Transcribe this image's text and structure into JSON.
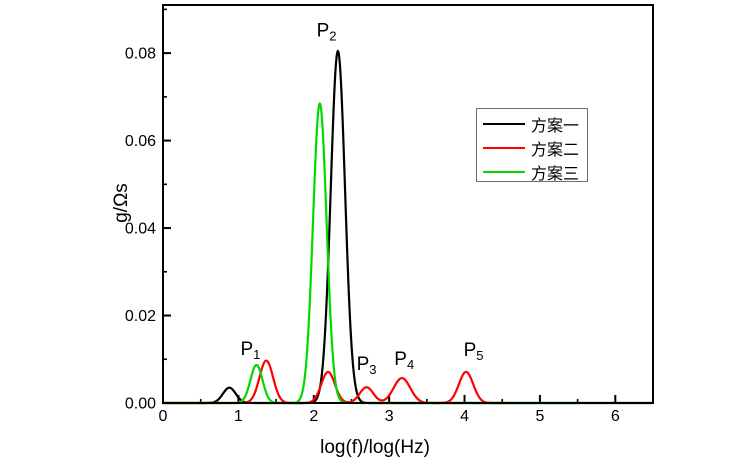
{
  "chart_data": {
    "type": "line",
    "title": "",
    "xlabel": "log(f)/log(Hz)",
    "ylabel": "g/Ωs",
    "xlim": [
      0,
      6.5
    ],
    "ylim": [
      0,
      0.091
    ],
    "x_major_ticks": [
      0,
      1,
      2,
      3,
      4,
      5,
      6
    ],
    "x_minor_ticks": [
      0.5,
      1.5,
      2.5,
      3.5,
      4.5,
      5.5
    ],
    "y_major_ticks": [
      0.0,
      0.02,
      0.04,
      0.06,
      0.08
    ],
    "y_minor_ticks": [
      0.01,
      0.03,
      0.05,
      0.07,
      0.09
    ],
    "grid": false,
    "legend_position": "upper-right-inside",
    "axis_color": "#000000",
    "series": [
      {
        "name": "方案一",
        "color": "#000000",
        "x_range": [
          0,
          6.5
        ],
        "gaussian_peaks": [
          {
            "center": 0.88,
            "height": 0.0035,
            "sigma": 0.085
          },
          {
            "center": 2.32,
            "height": 0.0805,
            "sigma": 0.095
          }
        ]
      },
      {
        "name": "方案二",
        "color": "#fe0000",
        "x_range": [
          0,
          4.55
        ],
        "gaussian_peaks": [
          {
            "center": 1.37,
            "height": 0.0097,
            "sigma": 0.09
          },
          {
            "center": 2.19,
            "height": 0.0071,
            "sigma": 0.09
          },
          {
            "center": 2.7,
            "height": 0.0036,
            "sigma": 0.09
          },
          {
            "center": 3.17,
            "height": 0.0057,
            "sigma": 0.11
          },
          {
            "center": 4.02,
            "height": 0.0071,
            "sigma": 0.095
          }
        ]
      },
      {
        "name": "方案三",
        "color": "#00d800",
        "x_range": [
          0,
          5.5
        ],
        "gaussian_peaks": [
          {
            "center": 1.24,
            "height": 0.0087,
            "sigma": 0.08
          },
          {
            "center": 2.08,
            "height": 0.0685,
            "sigma": 0.09
          }
        ]
      }
    ],
    "annotations": [
      {
        "text": "P",
        "sub": "1",
        "x": 1.16,
        "y": 0.0123
      },
      {
        "text": "P",
        "sub": "2",
        "x": 2.17,
        "y": 0.0852
      },
      {
        "text": "P",
        "sub": "3",
        "x": 2.7,
        "y": 0.0089
      },
      {
        "text": "P",
        "sub": "4",
        "x": 3.2,
        "y": 0.0101
      },
      {
        "text": "P",
        "sub": "5",
        "x": 4.12,
        "y": 0.0121
      }
    ]
  }
}
